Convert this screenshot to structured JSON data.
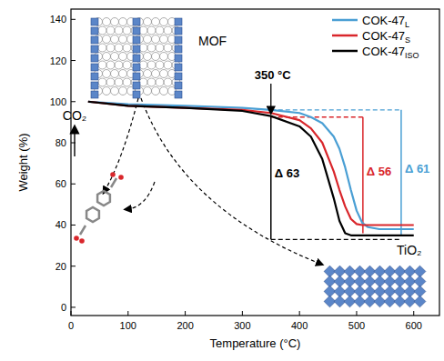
{
  "chart_data": {
    "type": "line",
    "x_label": "Temperature (°C)",
    "y_label": "Weight (%)",
    "xlim": [
      0,
      645
    ],
    "ylim": [
      -4,
      145
    ],
    "xticks": [
      0,
      100,
      200,
      300,
      400,
      500,
      600
    ],
    "yticks": [
      0,
      20,
      40,
      60,
      80,
      100,
      120,
      140
    ],
    "grid": false,
    "legend": "upper right",
    "x": [
      30,
      100,
      200,
      300,
      350,
      400,
      420,
      440,
      460,
      470,
      480,
      490,
      500,
      510,
      520,
      540,
      560,
      600
    ],
    "series": [
      {
        "name": "COK-47L",
        "color": "#4a9fd4",
        "values": [
          100,
          98.8,
          98,
          97,
          96,
          94.5,
          92.5,
          89.5,
          83,
          77,
          68,
          57,
          47,
          41,
          39,
          38,
          38,
          38
        ]
      },
      {
        "name": "COK-47S",
        "color": "#d9262b",
        "values": [
          100,
          98,
          97,
          96,
          94.5,
          91,
          87,
          80,
          66,
          57,
          49,
          43,
          40.5,
          40,
          40,
          40,
          40,
          40
        ]
      },
      {
        "name": "COK-47ISO",
        "color": "#000000",
        "values": [
          100,
          98,
          97,
          95.5,
          93,
          88,
          83,
          72,
          53,
          42,
          36,
          35,
          35,
          35,
          35,
          35,
          35,
          35
        ]
      }
    ],
    "annotations": [
      {
        "text": "350 °C",
        "x": 350
      }
    ],
    "brackets": [
      {
        "text": "Δ 61",
        "color": "#4a9fd4",
        "vline_x": 578,
        "top": 96,
        "bottom": 35,
        "dash_from": 350,
        "dash_to": 578,
        "dash_y": 96
      },
      {
        "text": "Δ 56",
        "color": "#d9262b",
        "vline_x": 511,
        "top": 92.5,
        "bottom": 36,
        "dash_from": 350,
        "dash_to": 511,
        "dash_y": 92.5
      },
      {
        "text": "Δ 63",
        "color": "#000000",
        "vline_x": 350,
        "top": 93,
        "bottom": 33,
        "dash_from": 350,
        "dash_to": 578,
        "dash_y": 33
      }
    ],
    "insets": {
      "mof": "MOF",
      "gas": "CO₂",
      "oxide": "TiO₂"
    }
  }
}
